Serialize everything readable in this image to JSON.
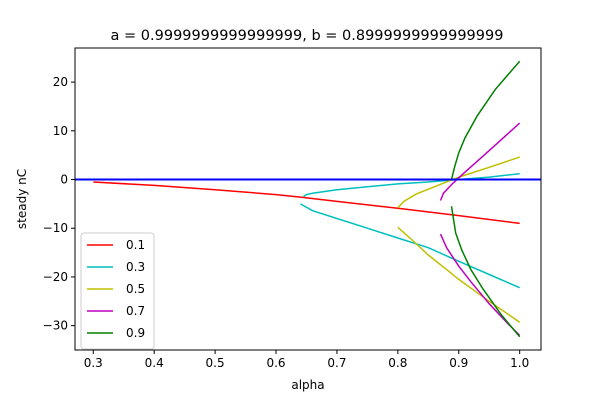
{
  "chart_data": {
    "type": "line",
    "title": "a = 0.9999999999999999, b = 0.8999999999999999",
    "xlabel": "alpha",
    "ylabel": "steady nC",
    "xlim": [
      0.27,
      1.035
    ],
    "ylim": [
      -35,
      27
    ],
    "xticks": [
      "0.3",
      "0.4",
      "0.5",
      "0.6",
      "0.7",
      "0.8",
      "0.9",
      "1.0"
    ],
    "xtick_values": [
      0.3,
      0.4,
      0.5,
      0.6,
      0.7,
      0.8,
      0.9,
      1.0
    ],
    "yticks": [
      "−30",
      "−20",
      "−10",
      "0",
      "10",
      "20"
    ],
    "ytick_values": [
      -30,
      -20,
      -10,
      0,
      10,
      20
    ],
    "grid": false,
    "legend_position": "lower-left",
    "hline": {
      "y": 0,
      "color": "#0000ff"
    },
    "series": [
      {
        "name": "0.1",
        "color": "#ff0000",
        "segments": [
          {
            "x": [
              0.3,
              0.4,
              0.5,
              0.6,
              0.64,
              0.7,
              0.8,
              0.9,
              1.0
            ],
            "y": [
              -0.5,
              -1.2,
              -2.1,
              -3.1,
              -3.6,
              -4.5,
              -5.9,
              -7.4,
              -9.0
            ]
          }
        ]
      },
      {
        "name": "0.3",
        "color": "#00bfbf",
        "segments": [
          {
            "x": [
              0.645,
              0.65,
              0.66,
              0.7,
              0.75,
              0.8,
              0.85,
              0.9,
              0.95,
              1.0
            ],
            "y": [
              -3.5,
              -3.1,
              -2.8,
              -2.1,
              -1.5,
              -0.9,
              -0.5,
              0.0,
              0.5,
              1.2
            ]
          },
          {
            "x": [
              0.64,
              0.66,
              0.7,
              0.75,
              0.8,
              0.85,
              0.9,
              0.95,
              1.0
            ],
            "y": [
              -5.0,
              -6.4,
              -8.0,
              -10.0,
              -12.0,
              -14.0,
              -16.8,
              -19.5,
              -22.2
            ]
          }
        ]
      },
      {
        "name": "0.5",
        "color": "#bfbf00",
        "segments": [
          {
            "x": [
              0.8,
              0.81,
              0.83,
              0.86,
              0.9,
              0.95,
              1.0
            ],
            "y": [
              -5.8,
              -4.5,
              -3.0,
              -1.5,
              0.5,
              2.5,
              4.6
            ]
          },
          {
            "x": [
              0.8,
              0.82,
              0.85,
              0.88,
              0.9,
              0.95,
              1.0
            ],
            "y": [
              -9.8,
              -12.0,
              -15.5,
              -18.5,
              -20.5,
              -25.0,
              -29.3
            ]
          }
        ]
      },
      {
        "name": "0.7",
        "color": "#bf00bf",
        "segments": [
          {
            "x": [
              0.87,
              0.875,
              0.89,
              0.91,
              0.94,
              0.97,
              1.0
            ],
            "y": [
              -4.3,
              -2.8,
              -0.8,
              1.5,
              4.8,
              8.2,
              11.6
            ]
          },
          {
            "x": [
              0.87,
              0.88,
              0.9,
              0.92,
              0.95,
              0.98,
              1.0
            ],
            "y": [
              -11.2,
              -14.0,
              -17.8,
              -21.0,
              -25.5,
              -29.5,
              -32.0
            ]
          }
        ]
      },
      {
        "name": "0.9",
        "color": "#008000",
        "segments": [
          {
            "x": [
              0.888,
              0.893,
              0.9,
              0.91,
              0.93,
              0.96,
              1.0
            ],
            "y": [
              0.0,
              2.5,
              5.5,
              8.5,
              13.0,
              18.5,
              24.3
            ]
          },
          {
            "x": [
              0.888,
              0.895,
              0.905,
              0.92,
              0.94,
              0.97,
              1.0
            ],
            "y": [
              -5.5,
              -11.0,
              -14.5,
              -18.5,
              -22.5,
              -27.8,
              -32.3
            ]
          }
        ]
      }
    ]
  }
}
